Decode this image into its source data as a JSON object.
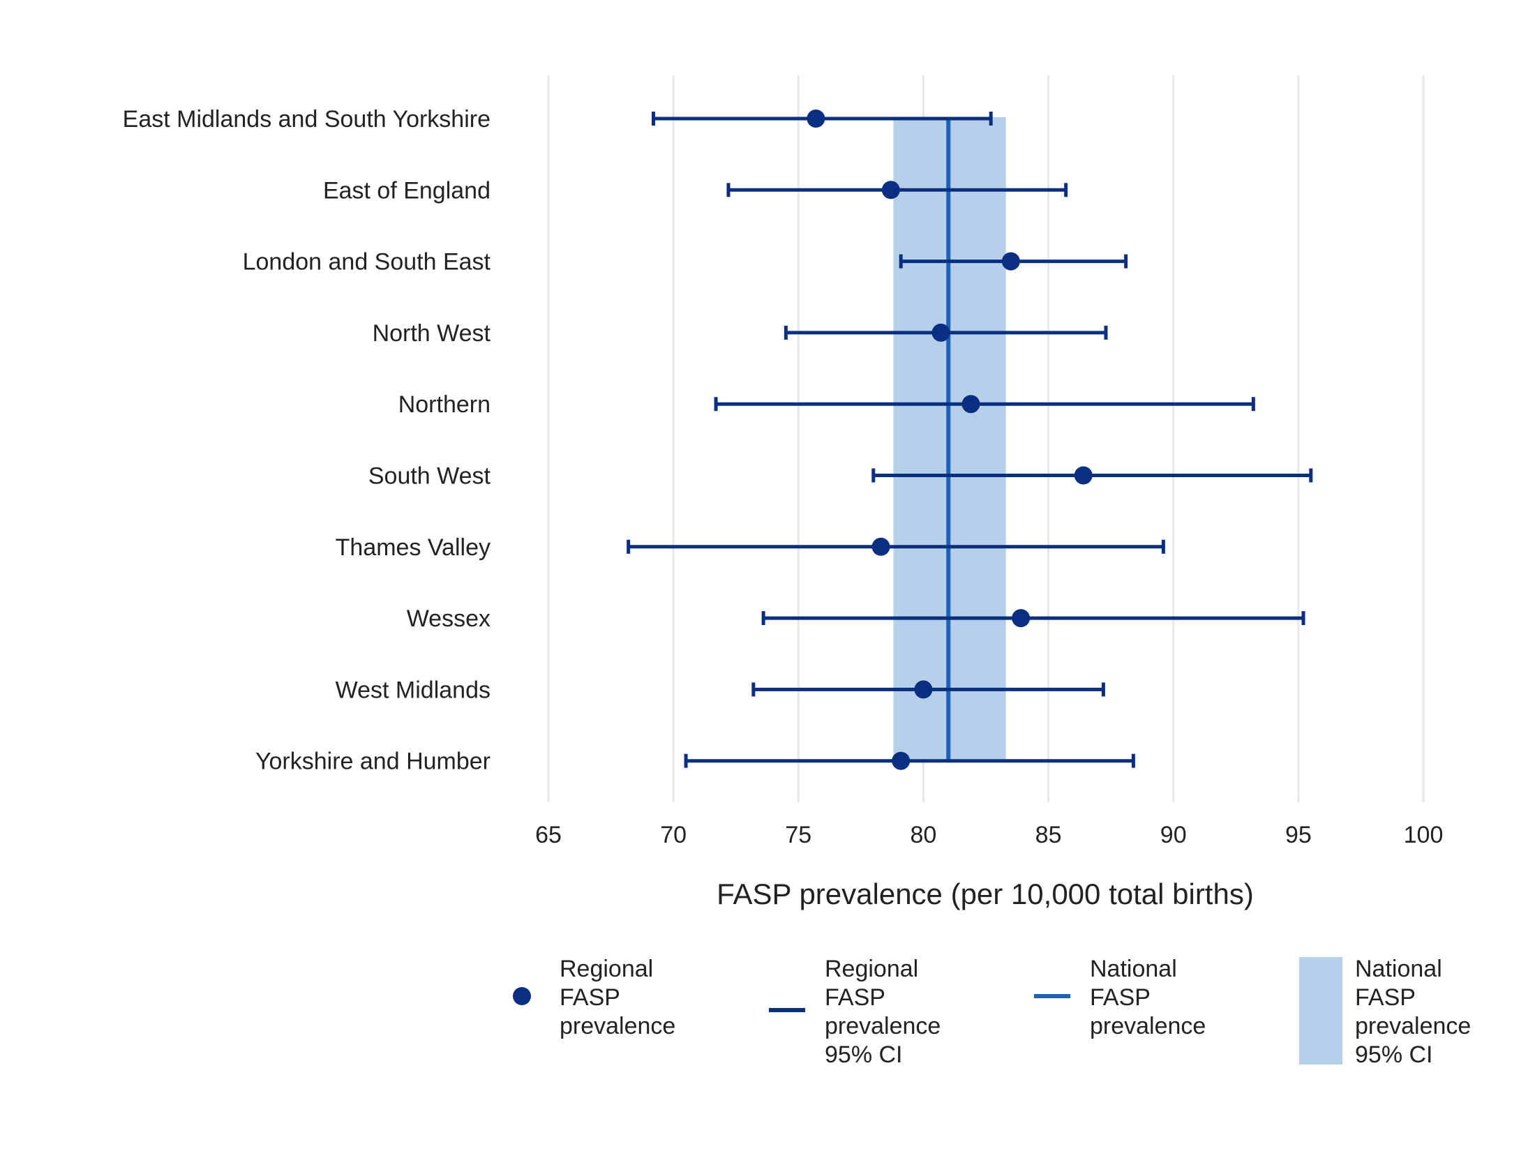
{
  "chart_data": {
    "type": "scatter",
    "xlabel": "FASP prevalence (per 10,000 total births)",
    "xlim": [
      65,
      100
    ],
    "xticks": [
      65,
      70,
      75,
      80,
      85,
      90,
      95,
      100
    ],
    "grid": "vertical",
    "categories": [
      "East Midlands and South Yorkshire",
      "East of England",
      "London and South East",
      "North West",
      "Northern",
      "South West",
      "Thames Valley",
      "Wessex",
      "West Midlands",
      "Yorkshire and Humber"
    ],
    "series": [
      {
        "name": "Regional FASP prevalence",
        "values": [
          75.7,
          78.7,
          83.5,
          80.7,
          81.9,
          86.4,
          78.3,
          83.9,
          80.0,
          79.1
        ]
      },
      {
        "name": "Regional FASP prevalence 95% CI",
        "lower": [
          69.2,
          72.2,
          79.1,
          74.5,
          71.7,
          78.0,
          68.2,
          73.6,
          73.2,
          70.5
        ],
        "upper": [
          82.7,
          85.7,
          88.1,
          87.3,
          93.2,
          95.5,
          89.6,
          95.2,
          87.2,
          88.4
        ]
      },
      {
        "name": "National FASP prevalence",
        "value": 81.0
      },
      {
        "name": "National FASP prevalence 95% CI",
        "lower": 78.8,
        "upper": 83.3
      }
    ],
    "legend": {
      "placement": "bottom",
      "items": [
        {
          "key": "point",
          "lines": [
            "Regional",
            "FASP",
            "prevalence"
          ]
        },
        {
          "key": "ci-line",
          "lines": [
            "Regional",
            "FASP",
            "prevalence",
            "95% CI"
          ]
        },
        {
          "key": "national-line",
          "lines": [
            "National",
            "FASP",
            "prevalence"
          ]
        },
        {
          "key": "national-band",
          "lines": [
            "National",
            "FASP",
            "prevalence",
            "95% CI"
          ]
        }
      ]
    },
    "colors": {
      "regional": "#0b2f80",
      "national_line": "#1b63b5",
      "national_band": "#b6d0ea",
      "grid": "#e6e6e6",
      "text": "#222222"
    }
  }
}
